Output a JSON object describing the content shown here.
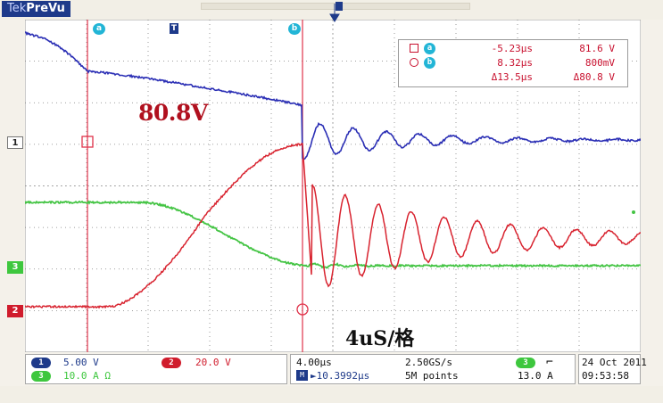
{
  "app": {
    "brand_prefix": "Tek",
    "brand_name": "PreVu"
  },
  "colors": {
    "ch1": "#2b2fb5",
    "ch2": "#d8232f",
    "ch3": "#44c444",
    "cursor": "#e0334a",
    "cursor_badge": "#22b5d6",
    "trigger": "#1e3a8a",
    "graticule": "#7f7f7f",
    "background": "#ffffff"
  },
  "channels": {
    "ch1": {
      "number": "1",
      "scale": "5.00 V"
    },
    "ch2": {
      "number": "2",
      "scale": "20.0 V"
    },
    "ch3": {
      "number": "3",
      "scale": "10.0 A Ω"
    }
  },
  "cursor_tabs": {
    "a": "a",
    "b": "b",
    "trigger": "T"
  },
  "cursor_readout": {
    "a": {
      "symbol": "square",
      "badge": "a",
      "time": "-5.23µs",
      "value": "81.6 V"
    },
    "b": {
      "symbol": "circle",
      "badge": "b",
      "time": "8.32µs",
      "value": "800mV"
    },
    "delta": {
      "time": "Δ13.5µs",
      "value": "Δ80.8 V"
    }
  },
  "annotations": {
    "voltage": "80.8V",
    "timescale": "4uS/格"
  },
  "horizontal": {
    "time_per_div": "4.00µs",
    "position_icon": "horizontal-position-icon",
    "position": "►10.3992µs",
    "sample_rate": "2.50GS/s",
    "record_length": "5M points"
  },
  "trigger": {
    "source": "3",
    "slope_icon": "falling-edge-icon",
    "slope": "⌐",
    "level": "13.0 A"
  },
  "datetime": {
    "date": "24 Oct  2011",
    "time": "09:53:58"
  }
}
